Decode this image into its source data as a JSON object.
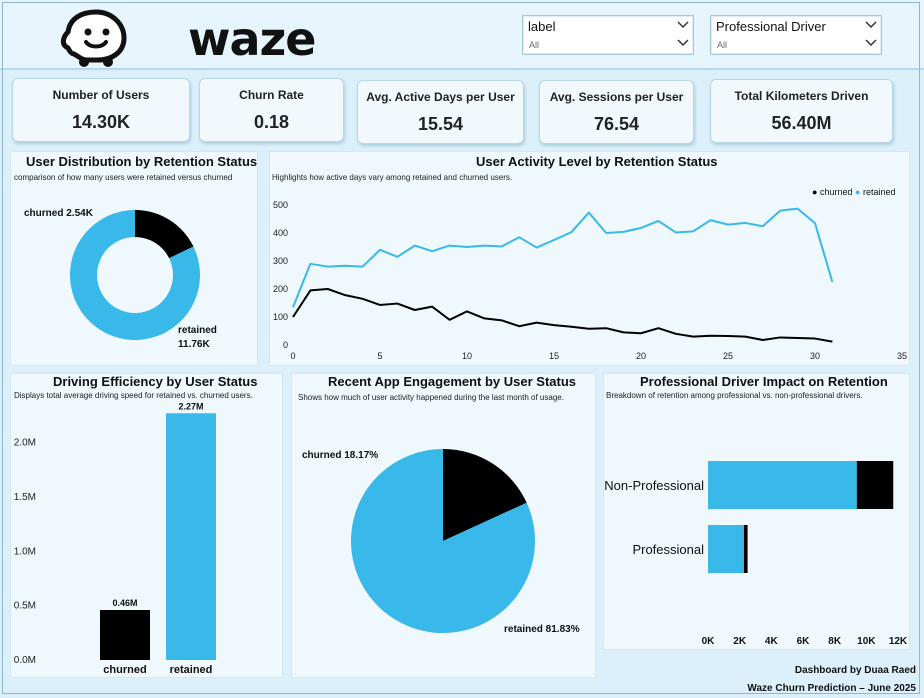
{
  "header": {
    "logo_text": "waze",
    "slicers": [
      {
        "label": "label",
        "value": "All"
      },
      {
        "label": "Professional Driver",
        "value": "All"
      }
    ]
  },
  "colors": {
    "churned": "#000000",
    "retained": "#39b8ea"
  },
  "kpis": [
    {
      "title": "Number of Users",
      "value": "14.30K"
    },
    {
      "title": "Churn Rate",
      "value": "0.18"
    },
    {
      "title": "Avg. Active Days per User",
      "value": "15.54"
    },
    {
      "title": "Avg. Sessions per User",
      "value": "76.54"
    },
    {
      "title": "Total Kilometers Driven",
      "value": "56.40M"
    }
  ],
  "distribution": {
    "title": "User Distribution by Retention Status",
    "subtitle": "comparison of how many users were retained versus churned",
    "churned_label": "churned 2.54K",
    "retained_label": "retained",
    "retained_value_label": "11.76K"
  },
  "activity": {
    "title": "User Activity Level by Retention Status",
    "subtitle": "Highlights how active days vary among retained and churned users.",
    "legend": [
      "churned",
      "retained"
    ]
  },
  "efficiency": {
    "title": "Driving Efficiency by User Status",
    "subtitle": "Displays total average driving speed for retained vs. churned users."
  },
  "engagement": {
    "title": "Recent App Engagement by User Status",
    "subtitle": "Shows how much of user activity happened during the last month of usage.",
    "churned_label": "churned 18.17%",
    "retained_label": "retained 81.83%"
  },
  "professional": {
    "title": "Professional Driver Impact on Retention",
    "subtitle": "Breakdown of retention among professional vs. non-professional drivers."
  },
  "footer": {
    "line1": "Dashboard by Duaa Raed",
    "line2": "Waze Churn Prediction – June 2025"
  },
  "chart_data": [
    {
      "type": "pie",
      "donut": true,
      "categories": [
        "churned",
        "retained"
      ],
      "values": [
        2540,
        11760
      ]
    },
    {
      "type": "line",
      "x": [
        0,
        1,
        2,
        3,
        4,
        5,
        6,
        7,
        8,
        9,
        10,
        11,
        12,
        13,
        14,
        15,
        16,
        17,
        18,
        19,
        20,
        21,
        22,
        23,
        24,
        25,
        26,
        27,
        28,
        29,
        30,
        31
      ],
      "xlim": [
        0,
        35
      ],
      "ylim": [
        0,
        500
      ],
      "xticks": [
        0,
        5,
        10,
        15,
        20,
        25,
        30,
        35
      ],
      "yticks": [
        0,
        100,
        200,
        300,
        400,
        500
      ],
      "legend_position": "top-right",
      "series": [
        {
          "name": "churned",
          "values": [
            100,
            195,
            200,
            178,
            165,
            143,
            148,
            125,
            137,
            90,
            120,
            95,
            88,
            67,
            80,
            71,
            65,
            58,
            60,
            45,
            42,
            60,
            40,
            30,
            33,
            32,
            30,
            18,
            27,
            25,
            23,
            12
          ]
        },
        {
          "name": "retained",
          "values": [
            135,
            290,
            280,
            283,
            280,
            340,
            315,
            355,
            335,
            355,
            350,
            355,
            352,
            385,
            348,
            375,
            403,
            473,
            400,
            404,
            418,
            443,
            402,
            406,
            446,
            430,
            436,
            424,
            480,
            487,
            435,
            225
          ]
        }
      ]
    },
    {
      "type": "bar",
      "categories": [
        "churned",
        "retained"
      ],
      "values": [
        460000,
        2270000
      ],
      "data_labels": [
        "0.46M",
        "2.27M"
      ],
      "ylim": [
        0,
        2300000
      ],
      "yticks": [
        0,
        500000,
        1000000,
        1500000,
        2000000
      ],
      "ytick_labels": [
        "0.0M",
        "0.5M",
        "1.0M",
        "1.5M",
        "2.0M"
      ]
    },
    {
      "type": "pie",
      "categories": [
        "churned",
        "retained"
      ],
      "values": [
        18.17,
        81.83
      ]
    },
    {
      "type": "bar",
      "orientation": "horizontal",
      "stacked": true,
      "categories": [
        "Non-Professional",
        "Professional"
      ],
      "series": [
        {
          "name": "retained",
          "values": [
            9400,
            2270
          ]
        },
        {
          "name": "churned",
          "values": [
            2300,
            230
          ]
        }
      ],
      "xlim": [
        0,
        12000
      ],
      "xticks": [
        0,
        2000,
        4000,
        6000,
        8000,
        10000,
        12000
      ],
      "xtick_labels": [
        "0K",
        "2K",
        "4K",
        "6K",
        "8K",
        "10K",
        "12K"
      ]
    }
  ]
}
